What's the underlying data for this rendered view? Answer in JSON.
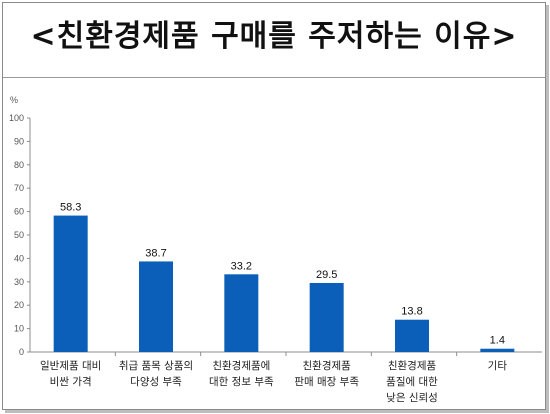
{
  "title": "<친환경제품  구매를  주저하는  이유>",
  "chart_data": {
    "type": "bar",
    "title": "<친환경제품  구매를  주저하는  이유>",
    "ylabel": "%",
    "xlabel": "",
    "ylim": [
      0,
      100
    ],
    "yticks": [
      0,
      10,
      20,
      30,
      40,
      50,
      60,
      70,
      80,
      90,
      100
    ],
    "grid": false,
    "legend": "none",
    "bar_color": "#0b5fb8",
    "categories": [
      [
        "일반제품 대비",
        "비싼 가격"
      ],
      [
        "취급 품목 상품의",
        "다양성 부족"
      ],
      [
        "친환경제품에",
        "대한 정보 부족"
      ],
      [
        "친환경제품",
        "판매 매장 부족"
      ],
      [
        "친환경제품",
        "품질에 대한",
        "낮은 신뢰성"
      ],
      [
        "기타"
      ]
    ],
    "values": [
      58.3,
      38.7,
      33.2,
      29.5,
      13.8,
      1.4
    ],
    "value_labels": [
      "58.3",
      "38.7",
      "33.2",
      "29.5",
      "13.8",
      "1.4"
    ]
  }
}
